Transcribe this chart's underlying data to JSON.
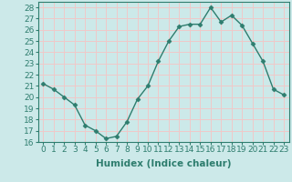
{
  "x": [
    0,
    1,
    2,
    3,
    4,
    5,
    6,
    7,
    8,
    9,
    10,
    11,
    12,
    13,
    14,
    15,
    16,
    17,
    18,
    19,
    20,
    21,
    22,
    23
  ],
  "y": [
    21.2,
    20.7,
    20.0,
    19.3,
    17.5,
    17.0,
    16.3,
    16.5,
    17.8,
    19.8,
    21.0,
    23.2,
    25.0,
    26.3,
    26.5,
    26.5,
    28.0,
    26.7,
    27.3,
    26.4,
    24.8,
    23.2,
    20.7,
    20.2
  ],
  "xlim": [
    -0.5,
    23.5
  ],
  "ylim": [
    16,
    28.5
  ],
  "yticks": [
    16,
    17,
    18,
    19,
    20,
    21,
    22,
    23,
    24,
    25,
    26,
    27,
    28
  ],
  "xticks": [
    0,
    1,
    2,
    3,
    4,
    5,
    6,
    7,
    8,
    9,
    10,
    11,
    12,
    13,
    14,
    15,
    16,
    17,
    18,
    19,
    20,
    21,
    22,
    23
  ],
  "xlabel": "Humidex (Indice chaleur)",
  "line_color": "#2e7d6e",
  "marker": "D",
  "marker_size": 2.5,
  "bg_color": "#cce9e9",
  "grid_color": "#f0c8c8",
  "label_fontsize": 7.5,
  "tick_fontsize": 6.5
}
